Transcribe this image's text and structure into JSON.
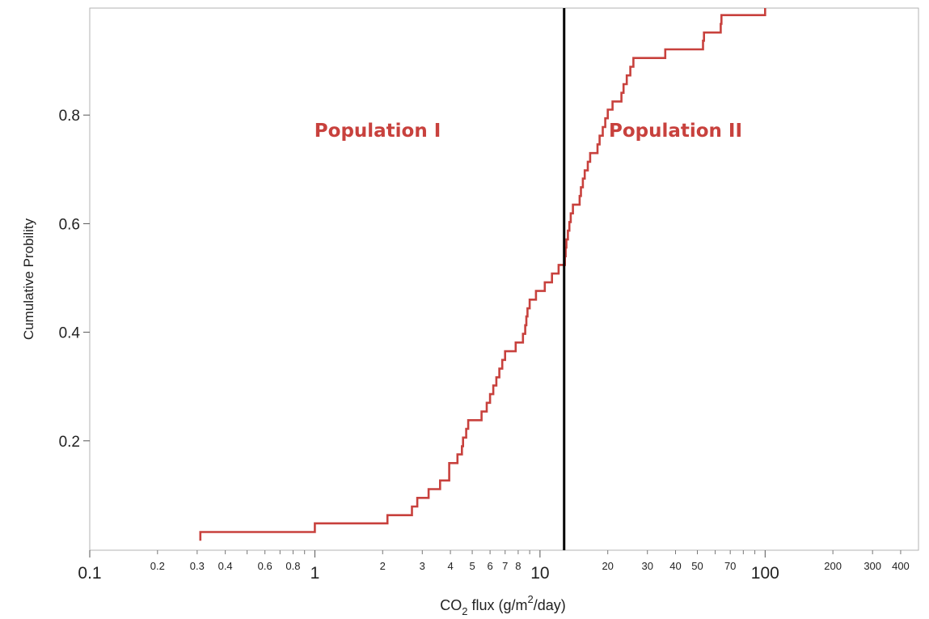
{
  "chart_data": {
    "type": "line",
    "subtype": "empirical-cumulative-distribution-step",
    "title": "",
    "xlabel": {
      "prefix": "CO",
      "sub": "2",
      "middle": " flux (g/m",
      "sup": "2",
      "suffix": "/day)"
    },
    "ylabel": "Cumulative Probility",
    "x_scale": "log",
    "xlim": [
      0.1,
      480
    ],
    "ylim": [
      0,
      1
    ],
    "grid": false,
    "legend": "none",
    "line_color": "#c8413d",
    "divider_color": "#000000",
    "x_ticks_major": [
      {
        "value": 0.1,
        "label": "0.1"
      },
      {
        "value": 1,
        "label": "1"
      },
      {
        "value": 10,
        "label": "10"
      },
      {
        "value": 100,
        "label": "100"
      }
    ],
    "x_ticks_minor": [
      {
        "value": 0.2,
        "label": "0.2"
      },
      {
        "value": 0.3,
        "label": "0.3"
      },
      {
        "value": 0.4,
        "label": "0.4"
      },
      {
        "value": 0.6,
        "label": "0.6"
      },
      {
        "value": 0.8,
        "label": "0.8"
      },
      {
        "value": 2,
        "label": "2"
      },
      {
        "value": 3,
        "label": "3"
      },
      {
        "value": 4,
        "label": "4"
      },
      {
        "value": 5,
        "label": "5"
      },
      {
        "value": 6,
        "label": "6"
      },
      {
        "value": 7,
        "label": "7"
      },
      {
        "value": 8,
        "label": "8"
      },
      {
        "value": 20,
        "label": "20"
      },
      {
        "value": 30,
        "label": "30"
      },
      {
        "value": 40,
        "label": "40"
      },
      {
        "value": 50,
        "label": "50"
      },
      {
        "value": 70,
        "label": "70"
      },
      {
        "value": 200,
        "label": "200"
      },
      {
        "value": 300,
        "label": "300"
      },
      {
        "value": 400,
        "label": "400"
      }
    ],
    "x_ticks_unlabeled": [
      0.5,
      0.7,
      0.9,
      9,
      60,
      80,
      90
    ],
    "y_ticks": [
      {
        "value": 0.2,
        "label": "0.2"
      },
      {
        "value": 0.4,
        "label": "0.4"
      },
      {
        "value": 0.6,
        "label": "0.6"
      },
      {
        "value": 0.8,
        "label": "0.8"
      }
    ],
    "divider_x": 12.8,
    "annotations": [
      {
        "text": "Population I",
        "x": 1.9,
        "y": 0.76,
        "color": "#c8413d"
      },
      {
        "text": "Population II",
        "x": 40,
        "y": 0.76,
        "color": "#c8413d"
      }
    ],
    "series": [
      {
        "values": [
          [
            0.31,
            0.016
          ],
          [
            0.31,
            0.032
          ],
          [
            1.0,
            0.032
          ],
          [
            1.0,
            0.048
          ],
          [
            2.1,
            0.048
          ],
          [
            2.1,
            0.063
          ],
          [
            2.7,
            0.063
          ],
          [
            2.7,
            0.079
          ],
          [
            2.85,
            0.079
          ],
          [
            2.85,
            0.095
          ],
          [
            3.2,
            0.095
          ],
          [
            3.2,
            0.111
          ],
          [
            3.6,
            0.111
          ],
          [
            3.6,
            0.127
          ],
          [
            3.95,
            0.127
          ],
          [
            3.95,
            0.143
          ],
          [
            3.95,
            0.159
          ],
          [
            4.3,
            0.159
          ],
          [
            4.3,
            0.175
          ],
          [
            4.5,
            0.175
          ],
          [
            4.5,
            0.19
          ],
          [
            4.55,
            0.19
          ],
          [
            4.55,
            0.206
          ],
          [
            4.7,
            0.206
          ],
          [
            4.7,
            0.222
          ],
          [
            4.8,
            0.222
          ],
          [
            4.8,
            0.238
          ],
          [
            5.5,
            0.238
          ],
          [
            5.5,
            0.254
          ],
          [
            5.8,
            0.254
          ],
          [
            5.8,
            0.27
          ],
          [
            6.0,
            0.27
          ],
          [
            6.0,
            0.286
          ],
          [
            6.2,
            0.286
          ],
          [
            6.2,
            0.302
          ],
          [
            6.4,
            0.302
          ],
          [
            6.4,
            0.317
          ],
          [
            6.6,
            0.317
          ],
          [
            6.6,
            0.333
          ],
          [
            6.8,
            0.333
          ],
          [
            6.8,
            0.349
          ],
          [
            7.0,
            0.349
          ],
          [
            7.0,
            0.365
          ],
          [
            7.8,
            0.365
          ],
          [
            7.8,
            0.381
          ],
          [
            8.4,
            0.381
          ],
          [
            8.4,
            0.397
          ],
          [
            8.6,
            0.397
          ],
          [
            8.6,
            0.413
          ],
          [
            8.7,
            0.413
          ],
          [
            8.7,
            0.429
          ],
          [
            8.8,
            0.429
          ],
          [
            8.8,
            0.444
          ],
          [
            9.0,
            0.444
          ],
          [
            9.0,
            0.46
          ],
          [
            9.6,
            0.46
          ],
          [
            9.6,
            0.476
          ],
          [
            10.5,
            0.476
          ],
          [
            10.5,
            0.492
          ],
          [
            11.3,
            0.492
          ],
          [
            11.3,
            0.508
          ],
          [
            12.1,
            0.508
          ],
          [
            12.1,
            0.524
          ],
          [
            12.9,
            0.524
          ],
          [
            12.9,
            0.54
          ],
          [
            13.0,
            0.54
          ],
          [
            13.0,
            0.556
          ],
          [
            13.1,
            0.556
          ],
          [
            13.1,
            0.571
          ],
          [
            13.3,
            0.571
          ],
          [
            13.3,
            0.587
          ],
          [
            13.5,
            0.587
          ],
          [
            13.5,
            0.603
          ],
          [
            13.7,
            0.603
          ],
          [
            13.7,
            0.619
          ],
          [
            14.0,
            0.619
          ],
          [
            14.0,
            0.635
          ],
          [
            15.0,
            0.635
          ],
          [
            15.0,
            0.651
          ],
          [
            15.2,
            0.651
          ],
          [
            15.2,
            0.667
          ],
          [
            15.5,
            0.667
          ],
          [
            15.5,
            0.683
          ],
          [
            15.8,
            0.683
          ],
          [
            15.8,
            0.698
          ],
          [
            16.3,
            0.698
          ],
          [
            16.3,
            0.714
          ],
          [
            16.7,
            0.714
          ],
          [
            16.7,
            0.73
          ],
          [
            18.0,
            0.73
          ],
          [
            18.0,
            0.746
          ],
          [
            18.4,
            0.746
          ],
          [
            18.4,
            0.762
          ],
          [
            19.0,
            0.762
          ],
          [
            19.0,
            0.778
          ],
          [
            19.5,
            0.778
          ],
          [
            19.5,
            0.794
          ],
          [
            20.0,
            0.794
          ],
          [
            20.0,
            0.81
          ],
          [
            21.0,
            0.81
          ],
          [
            21.0,
            0.825
          ],
          [
            23.0,
            0.825
          ],
          [
            23.0,
            0.841
          ],
          [
            23.5,
            0.841
          ],
          [
            23.5,
            0.857
          ],
          [
            24.3,
            0.857
          ],
          [
            24.3,
            0.873
          ],
          [
            25.2,
            0.873
          ],
          [
            25.2,
            0.889
          ],
          [
            26.0,
            0.889
          ],
          [
            26.0,
            0.905
          ],
          [
            36.0,
            0.905
          ],
          [
            36.0,
            0.921
          ],
          [
            53.0,
            0.921
          ],
          [
            53.0,
            0.937
          ],
          [
            53.5,
            0.937
          ],
          [
            53.5,
            0.952
          ],
          [
            63.5,
            0.952
          ],
          [
            63.5,
            0.968
          ],
          [
            64.0,
            0.968
          ],
          [
            64.0,
            0.984
          ],
          [
            100,
            0.984
          ],
          [
            100,
            1.0
          ],
          [
            420,
            1.0
          ],
          [
            420,
            1.016
          ],
          [
            480,
            1.016
          ]
        ]
      }
    ]
  }
}
